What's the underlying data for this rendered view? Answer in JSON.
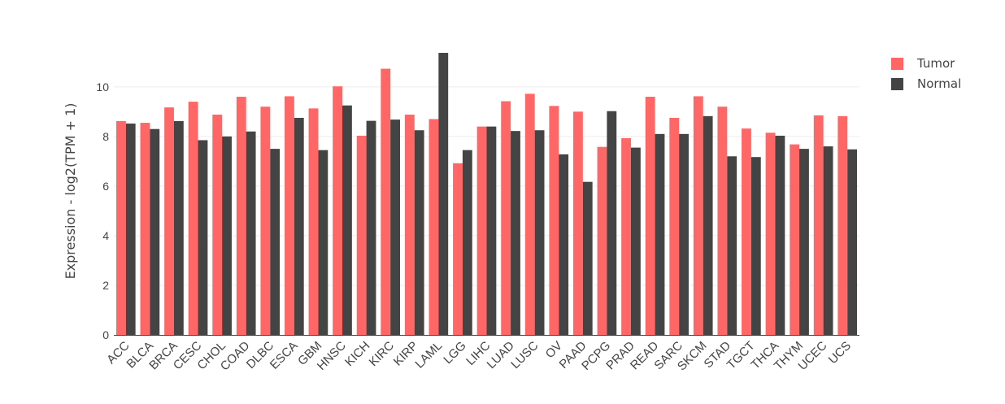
{
  "chart_data": {
    "type": "bar",
    "title": "",
    "xlabel": "",
    "ylabel": "Expression - log2(TPM + 1)",
    "ylim": [
      0,
      11.6
    ],
    "yticks": [
      0,
      2,
      4,
      6,
      8,
      10
    ],
    "grid": true,
    "legend_position": "top-right",
    "categories": [
      "ACC",
      "BLCA",
      "BRCA",
      "CESC",
      "CHOL",
      "COAD",
      "DLBC",
      "ESCA",
      "GBM",
      "HNSC",
      "KICH",
      "KIRC",
      "KIRP",
      "LAML",
      "LGG",
      "LIHC",
      "LUAD",
      "LUSC",
      "OV",
      "PAAD",
      "PCPG",
      "PRAD",
      "READ",
      "SARC",
      "SKCM",
      "STAD",
      "TGCT",
      "THCA",
      "THYM",
      "UCEC",
      "UCS"
    ],
    "series": [
      {
        "name": "Tumor",
        "color": "#ff6666",
        "values": [
          8.62,
          8.55,
          9.17,
          9.4,
          8.88,
          9.6,
          9.2,
          9.62,
          9.13,
          10.02,
          8.03,
          10.73,
          8.88,
          8.7,
          6.92,
          8.4,
          9.42,
          9.72,
          9.23,
          9.0,
          7.58,
          7.93,
          9.6,
          8.75,
          9.62,
          9.2,
          8.32,
          8.15,
          7.68,
          8.85,
          8.82
        ]
      },
      {
        "name": "Normal",
        "color": "#444444",
        "values": [
          8.52,
          8.3,
          8.62,
          7.85,
          8.0,
          8.2,
          7.5,
          8.75,
          7.45,
          9.25,
          8.63,
          8.68,
          8.25,
          11.37,
          7.45,
          8.4,
          8.22,
          8.25,
          7.28,
          6.17,
          9.02,
          7.55,
          8.1,
          8.1,
          8.82,
          7.2,
          7.17,
          8.03,
          7.5,
          7.6,
          7.48
        ]
      }
    ]
  }
}
